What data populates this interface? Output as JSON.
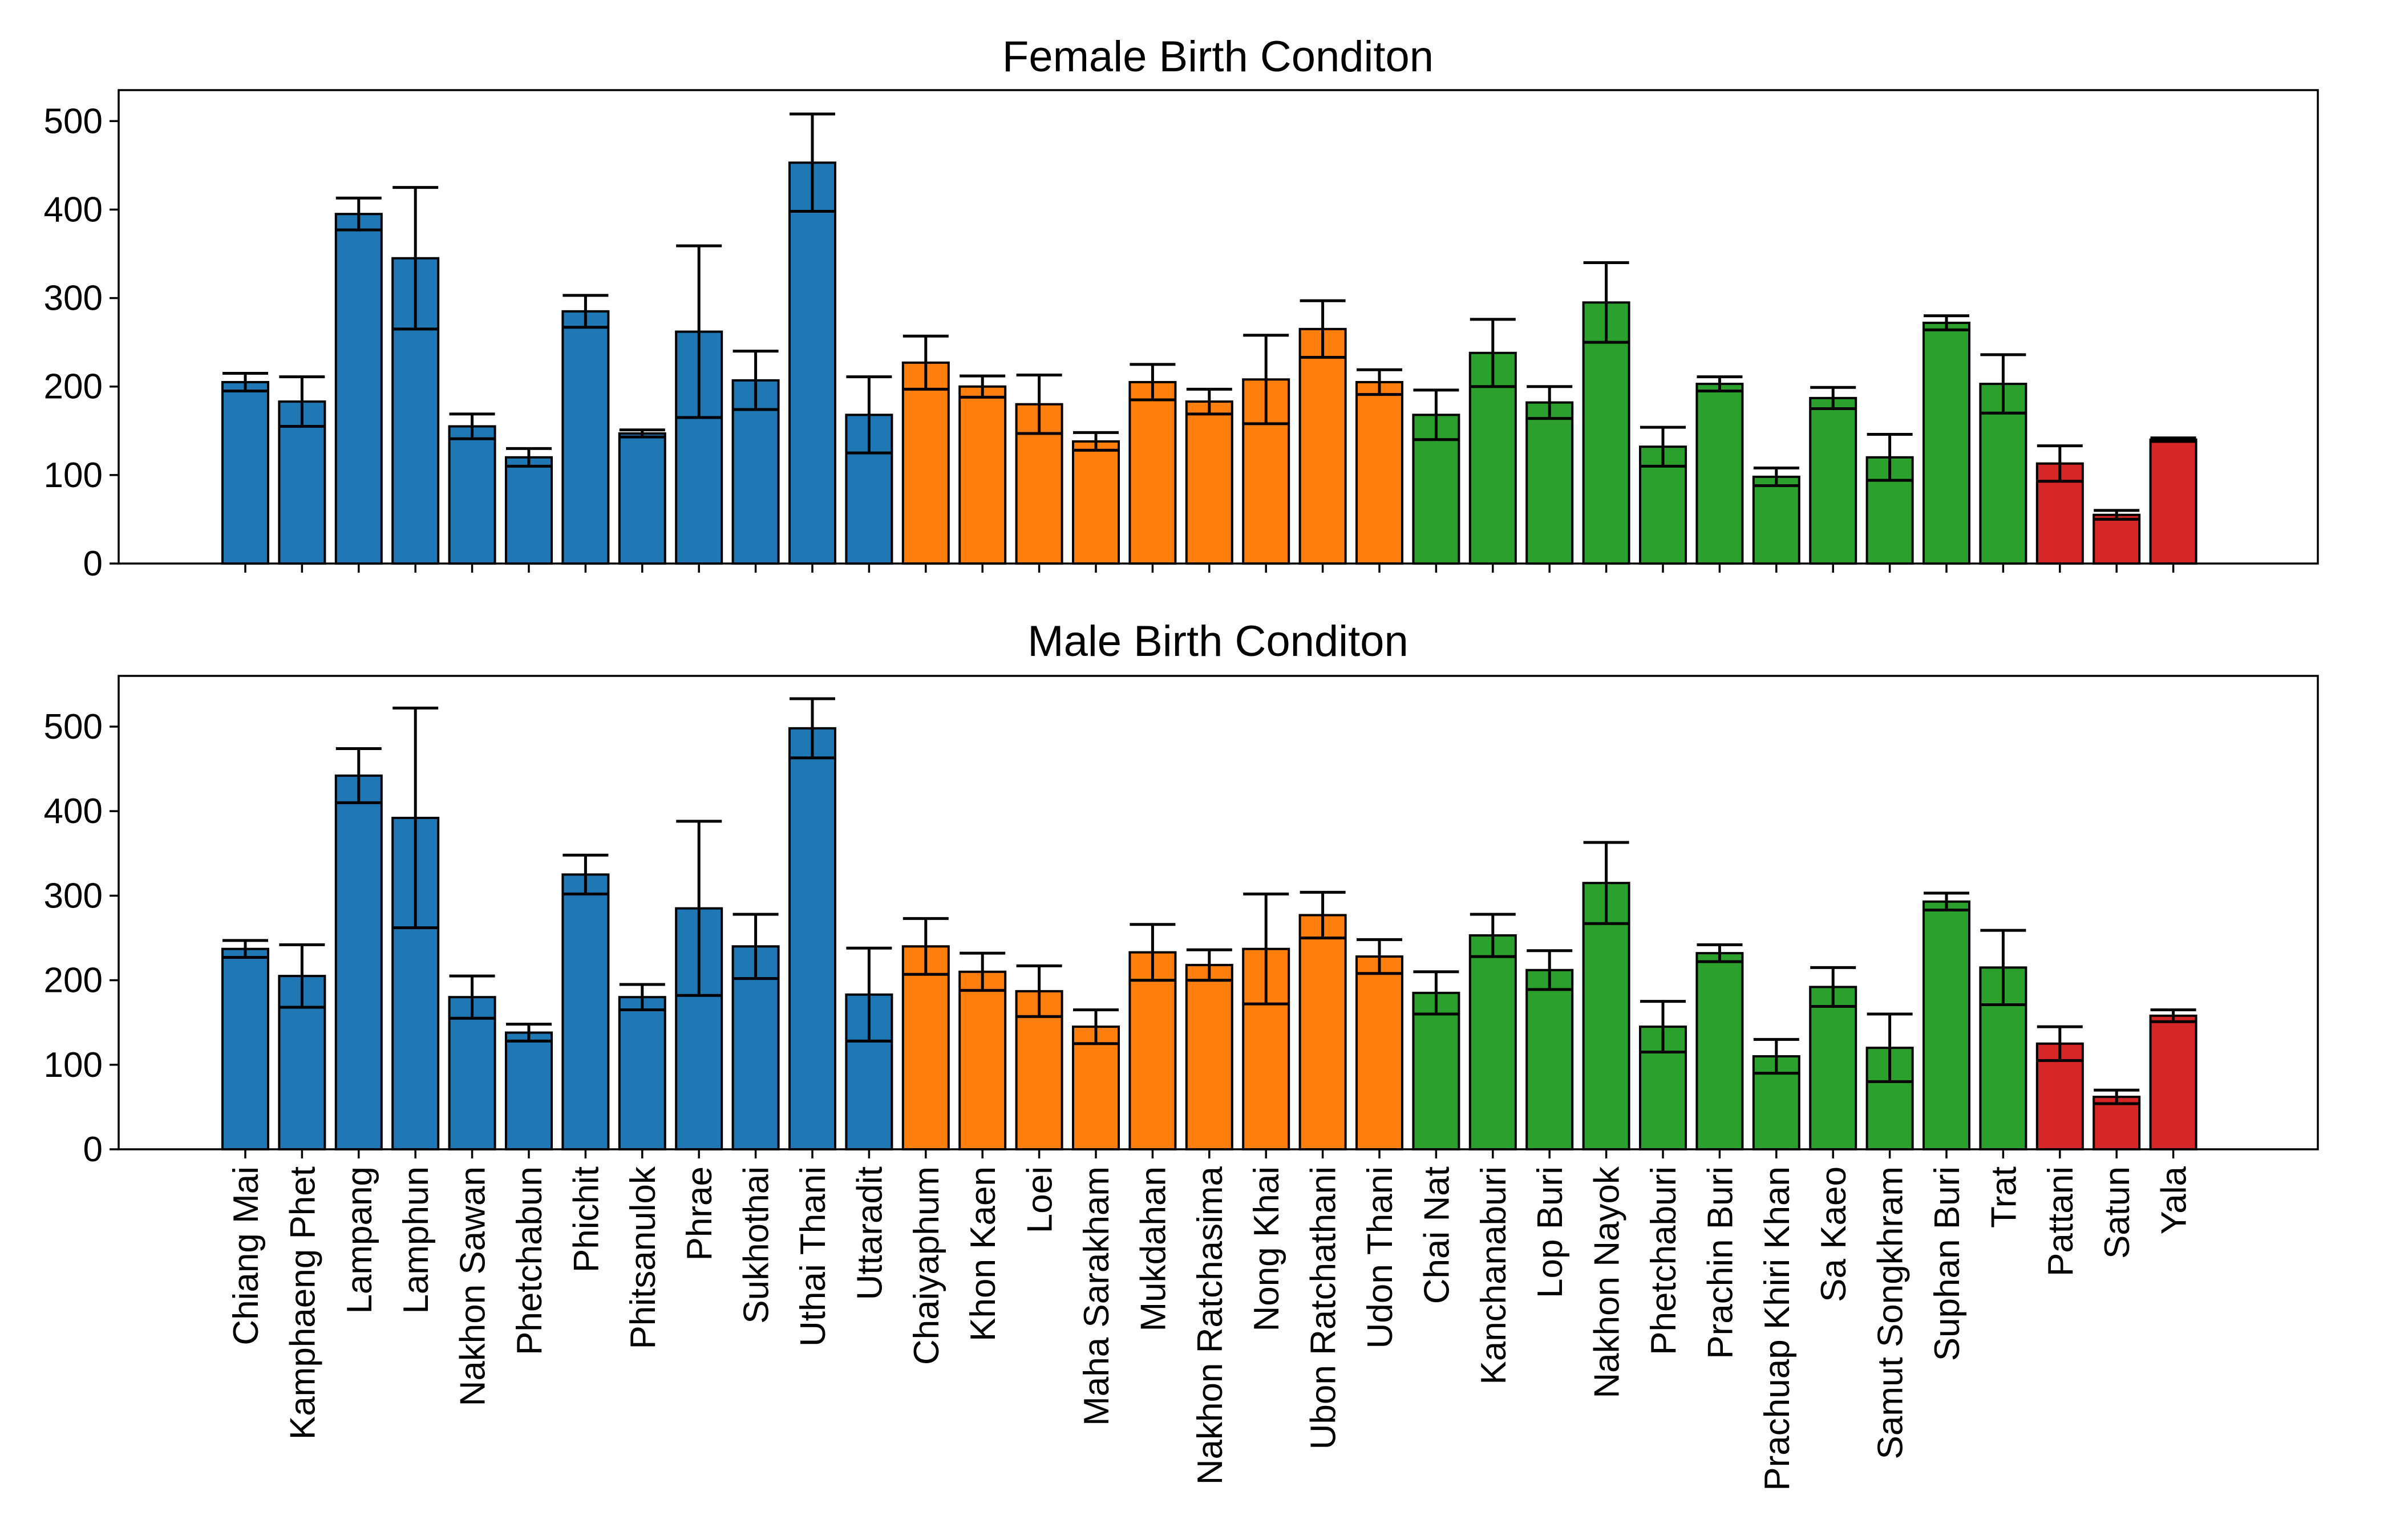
{
  "chart_data": [
    {
      "type": "bar",
      "title": "Female Birth Conditon",
      "ylim": [
        0,
        535
      ],
      "yticks": [
        0,
        100,
        200,
        300,
        400,
        500
      ],
      "grid": false,
      "colors": [
        "#1f77b4",
        "#1f77b4",
        "#1f77b4",
        "#1f77b4",
        "#1f77b4",
        "#1f77b4",
        "#1f77b4",
        "#1f77b4",
        "#1f77b4",
        "#1f77b4",
        "#1f77b4",
        "#1f77b4",
        "#ff7f0e",
        "#ff7f0e",
        "#ff7f0e",
        "#ff7f0e",
        "#ff7f0e",
        "#ff7f0e",
        "#ff7f0e",
        "#ff7f0e",
        "#ff7f0e",
        "#2ca02c",
        "#2ca02c",
        "#2ca02c",
        "#2ca02c",
        "#2ca02c",
        "#2ca02c",
        "#2ca02c",
        "#2ca02c",
        "#2ca02c",
        "#2ca02c",
        "#2ca02c",
        "#d62728",
        "#d62728",
        "#d62728"
      ],
      "categories": [
        "Chiang Mai",
        "Kamphaeng Phet",
        "Lampang",
        "Lamphun",
        "Nakhon Sawan",
        "Phetchabun",
        "Phichit",
        "Phitsanulok",
        "Phrae",
        "Sukhothai",
        "Uthai Thani",
        "Uttaradit",
        "Chaiyaphum",
        "Khon Kaen",
        "Loei",
        "Maha Sarakham",
        "Mukdahan",
        "Nakhon Ratchasima",
        "Nong Khai",
        "Ubon Ratchathani",
        "Udon Thani",
        "Chai Nat",
        "Kanchanaburi",
        "Lop Buri",
        "Nakhon Nayok",
        "Phetchaburi",
        "Prachin Buri",
        "Prachuap Khiri Khan",
        "Sa Kaeo",
        "Samut Songkhram",
        "Suphan Buri",
        "Trat",
        "Pattani",
        "Satun",
        "Yala"
      ],
      "values": [
        205,
        183,
        395,
        345,
        155,
        120,
        285,
        147,
        262,
        207,
        453,
        168,
        227,
        200,
        180,
        138,
        205,
        183,
        208,
        265,
        205,
        168,
        238,
        182,
        295,
        132,
        203,
        98,
        187,
        120,
        272,
        203,
        113,
        55,
        140
      ],
      "errors": [
        10,
        28,
        18,
        80,
        14,
        10,
        18,
        4,
        97,
        33,
        55,
        43,
        30,
        12,
        33,
        10,
        20,
        14,
        50,
        32,
        14,
        28,
        38,
        18,
        45,
        22,
        8,
        10,
        12,
        26,
        8,
        33,
        20,
        5,
        2
      ]
    },
    {
      "type": "bar",
      "title": "Male Birth Conditon",
      "ylim": [
        0,
        560
      ],
      "yticks": [
        0,
        100,
        200,
        300,
        400,
        500
      ],
      "grid": false,
      "colors": [
        "#1f77b4",
        "#1f77b4",
        "#1f77b4",
        "#1f77b4",
        "#1f77b4",
        "#1f77b4",
        "#1f77b4",
        "#1f77b4",
        "#1f77b4",
        "#1f77b4",
        "#1f77b4",
        "#1f77b4",
        "#ff7f0e",
        "#ff7f0e",
        "#ff7f0e",
        "#ff7f0e",
        "#ff7f0e",
        "#ff7f0e",
        "#ff7f0e",
        "#ff7f0e",
        "#ff7f0e",
        "#2ca02c",
        "#2ca02c",
        "#2ca02c",
        "#2ca02c",
        "#2ca02c",
        "#2ca02c",
        "#2ca02c",
        "#2ca02c",
        "#2ca02c",
        "#2ca02c",
        "#2ca02c",
        "#d62728",
        "#d62728",
        "#d62728"
      ],
      "categories": [
        "Chiang Mai",
        "Kamphaeng Phet",
        "Lampang",
        "Lamphun",
        "Nakhon Sawan",
        "Phetchabun",
        "Phichit",
        "Phitsanulok",
        "Phrae",
        "Sukhothai",
        "Uthai Thani",
        "Uttaradit",
        "Chaiyaphum",
        "Khon Kaen",
        "Loei",
        "Maha Sarakham",
        "Mukdahan",
        "Nakhon Ratchasima",
        "Nong Khai",
        "Ubon Ratchathani",
        "Udon Thani",
        "Chai Nat",
        "Kanchanaburi",
        "Lop Buri",
        "Nakhon Nayok",
        "Phetchaburi",
        "Prachin Buri",
        "Prachuap Khiri Khan",
        "Sa Kaeo",
        "Samut Songkhram",
        "Suphan Buri",
        "Trat",
        "Pattani",
        "Satun",
        "Yala"
      ],
      "values": [
        237,
        205,
        442,
        392,
        180,
        138,
        325,
        180,
        285,
        240,
        498,
        183,
        240,
        210,
        187,
        145,
        233,
        218,
        237,
        277,
        228,
        185,
        253,
        212,
        315,
        145,
        232,
        110,
        192,
        120,
        293,
        215,
        125,
        62,
        158
      ],
      "errors": [
        10,
        37,
        32,
        130,
        25,
        10,
        23,
        15,
        103,
        38,
        35,
        55,
        33,
        22,
        30,
        20,
        33,
        18,
        65,
        27,
        20,
        25,
        25,
        23,
        48,
        30,
        10,
        20,
        23,
        40,
        10,
        44,
        20,
        8,
        7
      ]
    }
  ]
}
